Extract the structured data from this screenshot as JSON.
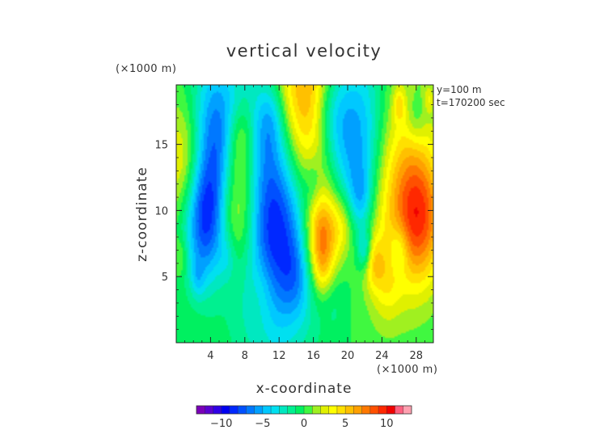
{
  "chart_data": {
    "type": "heatmap",
    "title": "vertical velocity",
    "xlabel": "x-coordinate",
    "ylabel": "z-coordinate",
    "x_unit": "(×1000 m)",
    "y_unit": "(×1000 m)",
    "annotations": [
      "y=100 m",
      "t=170200 sec"
    ],
    "xlim": [
      0,
      30
    ],
    "ylim": [
      0,
      19.5
    ],
    "x_ticks": [
      4,
      8,
      12,
      16,
      20,
      24,
      28
    ],
    "y_ticks": [
      5,
      10,
      15
    ],
    "colorbar": {
      "range": [
        -13,
        13
      ],
      "ticks": [
        -10,
        -5,
        0,
        5,
        10
      ],
      "levels": 26,
      "colors": [
        "#7a00b8",
        "#5a00d0",
        "#3000e6",
        "#0000f0",
        "#0028ff",
        "#0050ff",
        "#0078ff",
        "#00a0ff",
        "#00c8ff",
        "#00e0f0",
        "#00e8c0",
        "#00f090",
        "#00f060",
        "#40f840",
        "#a0f020",
        "#e0f000",
        "#ffff00",
        "#ffe000",
        "#ffc000",
        "#ffa000",
        "#ff7800",
        "#ff5000",
        "#ff2800",
        "#f00000",
        "#ff6080",
        "#ffa0b0"
      ]
    },
    "grid": false,
    "features": [
      {
        "x": 1.5,
        "z": 13.5,
        "w": 5.0,
        "value": 6
      },
      {
        "x": 4.5,
        "z": 15.0,
        "w": 6.0,
        "value": -8
      },
      {
        "x": 3.5,
        "z": 9.5,
        "w": 4.8,
        "value": -9
      },
      {
        "x": 7.0,
        "z": 10.5,
        "w": 5.5,
        "value": 10
      },
      {
        "x": 7.5,
        "z": 15.5,
        "w": 3.0,
        "value": 4
      },
      {
        "x": 11.5,
        "z": 10.5,
        "w": 9.0,
        "value": -13
      },
      {
        "x": 11.0,
        "z": 17.0,
        "w": 3.0,
        "value": -3
      },
      {
        "x": 15.0,
        "z": 16.5,
        "w": 8.5,
        "value": 11
      },
      {
        "x": 16.0,
        "z": 12.0,
        "w": 2.0,
        "value": -2
      },
      {
        "x": 17.0,
        "z": 8.0,
        "w": 3.5,
        "value": 8
      },
      {
        "x": 19.5,
        "z": 9.0,
        "w": 2.5,
        "value": 3
      },
      {
        "x": 18.0,
        "z": 17.5,
        "w": 4.0,
        "value": -4
      },
      {
        "x": 21.0,
        "z": 15.0,
        "w": 7.0,
        "value": -9
      },
      {
        "x": 21.5,
        "z": 11.0,
        "w": 2.5,
        "value": -3
      },
      {
        "x": 22.0,
        "z": 7.0,
        "w": 1.5,
        "value": -4
      },
      {
        "x": 23.0,
        "z": 6.0,
        "w": 2.0,
        "value": 3
      },
      {
        "x": 25.0,
        "z": 12.0,
        "w": 8.0,
        "value": 6
      },
      {
        "x": 28.5,
        "z": 9.5,
        "w": 5.0,
        "value": 7
      },
      {
        "x": 26.0,
        "z": 7.0,
        "w": 2.0,
        "value": -3
      },
      {
        "x": 28.0,
        "z": 17.0,
        "w": 2.0,
        "value": -2
      },
      {
        "x": 26.0,
        "z": 18.0,
        "w": 1.2,
        "value": 3
      },
      {
        "x": 29.5,
        "z": 18.5,
        "w": 1.0,
        "value": 2
      },
      {
        "x": 2.5,
        "z": 4.8,
        "w": 1.5,
        "value": -2
      },
      {
        "x": 0.5,
        "z": 6.5,
        "w": 1.5,
        "value": 2
      },
      {
        "x": 14.0,
        "z": 5.0,
        "w": 3.0,
        "value": -2
      },
      {
        "x": 10.0,
        "z": 4.0,
        "w": 3.0,
        "value": 2
      },
      {
        "x": 18.5,
        "z": 3.0,
        "w": 2.5,
        "value": -1
      },
      {
        "x": 24.5,
        "z": 4.5,
        "w": 3.0,
        "value": 2
      },
      {
        "x": 6.0,
        "z": 6.5,
        "w": 2.0,
        "value": -2
      },
      {
        "x": 17.0,
        "z": 5.5,
        "w": 2.0,
        "value": 2
      }
    ]
  }
}
